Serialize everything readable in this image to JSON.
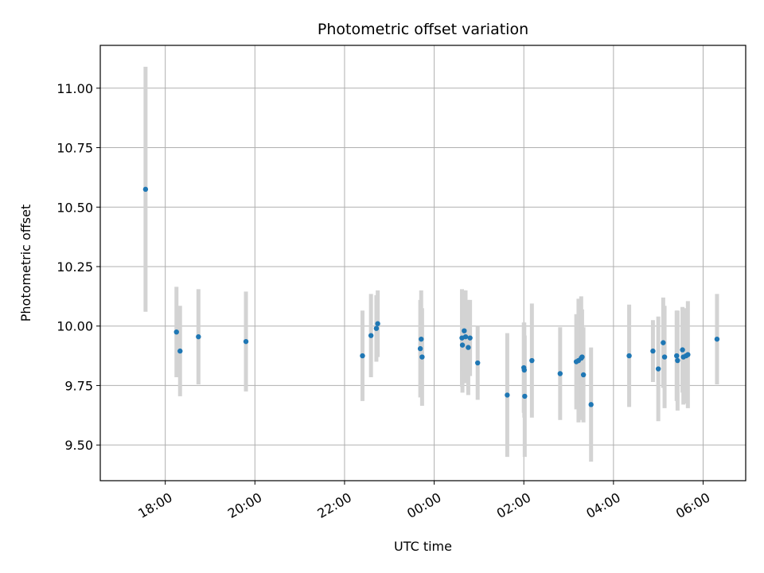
{
  "chart_data": {
    "type": "scatter",
    "title": "Photometric offset variation",
    "xlabel": "UTC time",
    "ylabel": "Photometric offset",
    "x_unit": "hours from 00:00 UTC (negative = previous day)",
    "xlim": [
      -7.45,
      6.95
    ],
    "ylim": [
      9.35,
      11.18
    ],
    "grid": true,
    "x_ticks": [
      {
        "value": -6,
        "label": "18:00"
      },
      {
        "value": -4,
        "label": "20:00"
      },
      {
        "value": -2,
        "label": "22:00"
      },
      {
        "value": 0,
        "label": "00:00"
      },
      {
        "value": 2,
        "label": "02:00"
      },
      {
        "value": 4,
        "label": "04:00"
      },
      {
        "value": 6,
        "label": "06:00"
      }
    ],
    "y_ticks": [
      {
        "value": 9.5,
        "label": "9.50"
      },
      {
        "value": 9.75,
        "label": "9.75"
      },
      {
        "value": 10.0,
        "label": "10.00"
      },
      {
        "value": 10.25,
        "label": "10.25"
      },
      {
        "value": 10.5,
        "label": "10.50"
      },
      {
        "value": 10.75,
        "label": "10.75"
      },
      {
        "value": 11.0,
        "label": "11.00"
      }
    ],
    "point_color": "#1f77b4",
    "errorbar_color": "#d3d3d3",
    "points": [
      {
        "x": -6.44,
        "y": 10.575,
        "err": 0.515
      },
      {
        "x": -5.75,
        "y": 9.975,
        "err": 0.19
      },
      {
        "x": -5.67,
        "y": 9.895,
        "err": 0.19
      },
      {
        "x": -5.26,
        "y": 9.955,
        "err": 0.2
      },
      {
        "x": -4.2,
        "y": 9.935,
        "err": 0.21
      },
      {
        "x": -1.6,
        "y": 9.875,
        "err": 0.19
      },
      {
        "x": -1.41,
        "y": 9.96,
        "err": 0.175
      },
      {
        "x": -1.29,
        "y": 9.99,
        "err": 0.14
      },
      {
        "x": -1.26,
        "y": 10.01,
        "err": 0.14
      },
      {
        "x": -0.31,
        "y": 9.905,
        "err": 0.205
      },
      {
        "x": -0.29,
        "y": 9.945,
        "err": 0.205
      },
      {
        "x": -0.27,
        "y": 9.87,
        "err": 0.205
      },
      {
        "x": 0.62,
        "y": 9.95,
        "err": 0.205
      },
      {
        "x": 0.63,
        "y": 9.92,
        "err": 0.2
      },
      {
        "x": 0.67,
        "y": 9.98,
        "err": 0.17
      },
      {
        "x": 0.7,
        "y": 9.955,
        "err": 0.195
      },
      {
        "x": 0.76,
        "y": 9.91,
        "err": 0.2
      },
      {
        "x": 0.8,
        "y": 9.95,
        "err": 0.16
      },
      {
        "x": 0.97,
        "y": 9.845,
        "err": 0.155
      },
      {
        "x": 1.63,
        "y": 9.71,
        "err": 0.26
      },
      {
        "x": 2.0,
        "y": 9.825,
        "err": 0.19
      },
      {
        "x": 2.01,
        "y": 9.815,
        "err": 0.2
      },
      {
        "x": 2.02,
        "y": 9.705,
        "err": 0.255
      },
      {
        "x": 2.18,
        "y": 9.855,
        "err": 0.24
      },
      {
        "x": 2.81,
        "y": 9.8,
        "err": 0.195
      },
      {
        "x": 3.17,
        "y": 9.85,
        "err": 0.2
      },
      {
        "x": 3.22,
        "y": 9.855,
        "err": 0.26
      },
      {
        "x": 3.28,
        "y": 9.865,
        "err": 0.26
      },
      {
        "x": 3.3,
        "y": 9.87,
        "err": 0.2
      },
      {
        "x": 3.33,
        "y": 9.795,
        "err": 0.2
      },
      {
        "x": 3.5,
        "y": 9.67,
        "err": 0.24
      },
      {
        "x": 4.35,
        "y": 9.875,
        "err": 0.215
      },
      {
        "x": 4.88,
        "y": 9.895,
        "err": 0.13
      },
      {
        "x": 5.0,
        "y": 9.82,
        "err": 0.22
      },
      {
        "x": 5.11,
        "y": 9.93,
        "err": 0.19
      },
      {
        "x": 5.14,
        "y": 9.87,
        "err": 0.215
      },
      {
        "x": 5.41,
        "y": 9.875,
        "err": 0.19
      },
      {
        "x": 5.43,
        "y": 9.855,
        "err": 0.21
      },
      {
        "x": 5.54,
        "y": 9.9,
        "err": 0.18
      },
      {
        "x": 5.56,
        "y": 9.87,
        "err": 0.2
      },
      {
        "x": 5.62,
        "y": 9.875,
        "err": 0.2
      },
      {
        "x": 5.66,
        "y": 9.88,
        "err": 0.225
      },
      {
        "x": 6.31,
        "y": 9.945,
        "err": 0.19
      }
    ]
  }
}
